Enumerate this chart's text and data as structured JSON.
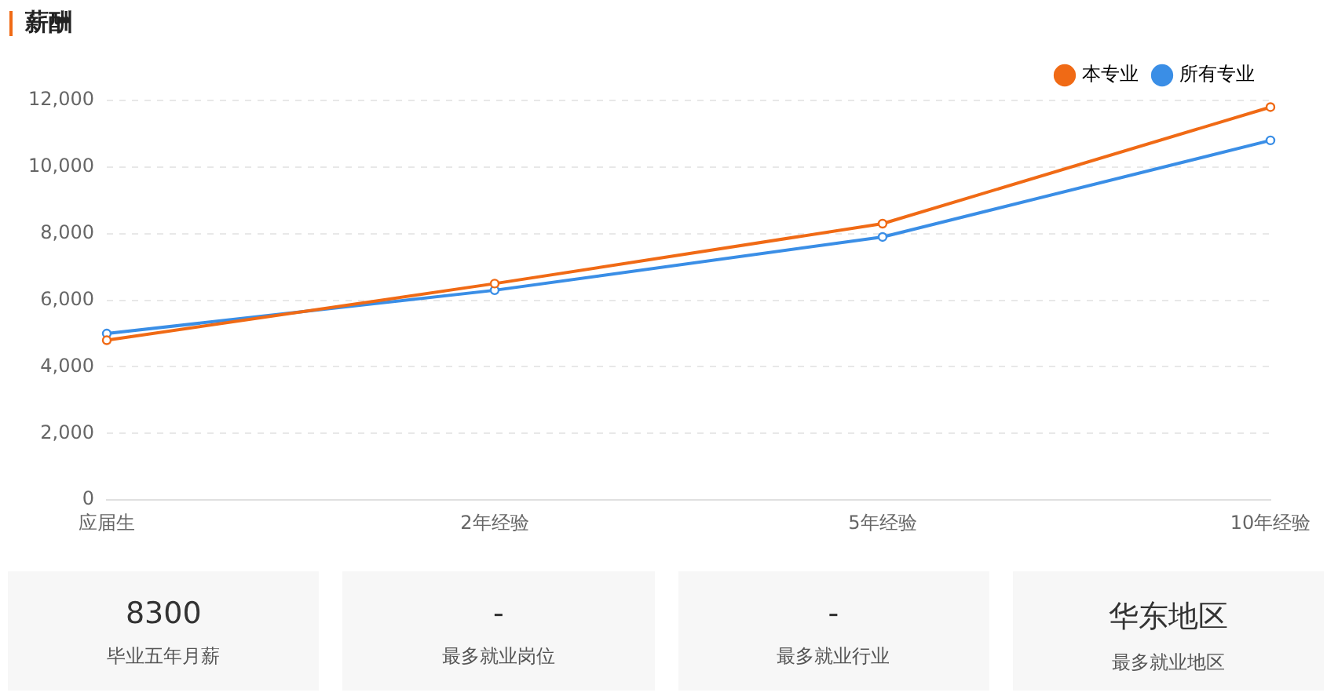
{
  "chart_data": [
    {
      "type": "line",
      "title": "薪酬",
      "categories": [
        "应届生",
        "2年经验",
        "5年经验",
        "10年经验"
      ],
      "series": [
        {
          "name": "本专业",
          "color": "#f06a15",
          "values": [
            4800,
            6500,
            8300,
            11800
          ]
        },
        {
          "name": "所有专业",
          "color": "#3a8ee6",
          "values": [
            5000,
            6300,
            7900,
            10800
          ]
        }
      ],
      "ylim": [
        0,
        12000
      ],
      "yticks": [
        0,
        {
          "value": 2000,
          "label": "2,000"
        },
        {
          "value": 4000,
          "label": "4,000"
        },
        {
          "value": 6000,
          "label": "6,000"
        },
        {
          "value": 8000,
          "label": "8,000"
        },
        {
          "value": 10000,
          "label": "10,000"
        },
        {
          "value": 12000,
          "label": "12,000"
        }
      ],
      "grid": "y",
      "legend": "top right",
      "marker": "circle",
      "line_style": "solid"
    },
    {
      "type": "other",
      "annotations": [
        "8300",
        "毕业五年月薪",
        "-",
        "最多就业岗位",
        "-",
        "最多就业行业",
        "华东地区",
        "最多就业地区"
      ]
    }
  ]
}
